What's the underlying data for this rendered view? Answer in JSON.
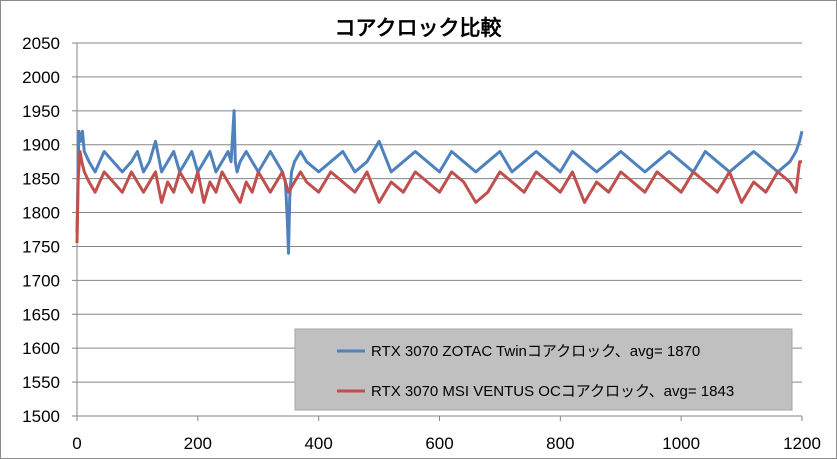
{
  "chart_data": {
    "type": "line",
    "title": "コアクロック比較",
    "xlabel": "",
    "ylabel": "",
    "xlim": [
      0,
      1200
    ],
    "ylim": [
      1500,
      2050
    ],
    "x_ticks": [
      0,
      200,
      400,
      600,
      800,
      1000,
      1200
    ],
    "y_ticks": [
      1500,
      1550,
      1600,
      1650,
      1700,
      1750,
      1800,
      1850,
      1900,
      1950,
      2000,
      2050
    ],
    "grid": "horizontal",
    "legend_position": "bottom-right",
    "legend_background": "#c0c0c0",
    "series": [
      {
        "name": "RTX 3070 ZOTAC Twinコアクロック、avg= 1870",
        "color": "#4f81bd",
        "x": [
          0,
          3,
          6,
          9,
          12,
          20,
          30,
          45,
          60,
          75,
          90,
          100,
          110,
          120,
          130,
          140,
          150,
          160,
          170,
          180,
          190,
          200,
          210,
          220,
          230,
          240,
          250,
          255,
          260,
          262,
          265,
          270,
          280,
          290,
          300,
          310,
          320,
          330,
          340,
          345,
          348,
          350,
          352,
          355,
          360,
          370,
          380,
          400,
          420,
          440,
          460,
          480,
          500,
          520,
          540,
          560,
          580,
          600,
          620,
          640,
          660,
          680,
          700,
          720,
          740,
          760,
          780,
          800,
          820,
          840,
          860,
          880,
          900,
          920,
          940,
          960,
          980,
          1000,
          1020,
          1040,
          1060,
          1080,
          1100,
          1120,
          1140,
          1160,
          1180,
          1190,
          1196,
          1200
        ],
        "y": [
          1770,
          1920,
          1905,
          1920,
          1890,
          1875,
          1860,
          1890,
          1875,
          1860,
          1875,
          1890,
          1860,
          1875,
          1905,
          1860,
          1875,
          1890,
          1860,
          1875,
          1890,
          1860,
          1875,
          1890,
          1860,
          1875,
          1890,
          1875,
          1950,
          1875,
          1860,
          1875,
          1890,
          1875,
          1860,
          1875,
          1890,
          1875,
          1860,
          1845,
          1790,
          1740,
          1820,
          1860,
          1875,
          1890,
          1875,
          1860,
          1875,
          1890,
          1860,
          1875,
          1905,
          1860,
          1875,
          1890,
          1875,
          1860,
          1890,
          1875,
          1860,
          1875,
          1890,
          1860,
          1875,
          1890,
          1875,
          1860,
          1890,
          1875,
          1860,
          1875,
          1890,
          1875,
          1860,
          1875,
          1890,
          1875,
          1860,
          1890,
          1875,
          1860,
          1875,
          1890,
          1875,
          1860,
          1875,
          1890,
          1905,
          1920
        ]
      },
      {
        "name": "RTX 3070 MSI VENTUS OCコアクロック、avg= 1843",
        "color": "#c0504d",
        "x": [
          0,
          2,
          5,
          8,
          12,
          20,
          30,
          45,
          60,
          75,
          90,
          100,
          110,
          120,
          130,
          140,
          150,
          160,
          170,
          180,
          190,
          200,
          210,
          220,
          230,
          240,
          250,
          260,
          270,
          280,
          290,
          300,
          310,
          320,
          330,
          340,
          350,
          360,
          370,
          380,
          400,
          420,
          440,
          460,
          480,
          500,
          520,
          540,
          560,
          580,
          600,
          620,
          640,
          660,
          680,
          700,
          720,
          740,
          760,
          780,
          800,
          820,
          840,
          860,
          880,
          900,
          920,
          940,
          960,
          980,
          1000,
          1020,
          1040,
          1060,
          1080,
          1100,
          1120,
          1140,
          1160,
          1180,
          1190,
          1196,
          1200
        ],
        "y": [
          1755,
          1850,
          1890,
          1875,
          1860,
          1845,
          1830,
          1860,
          1845,
          1830,
          1860,
          1845,
          1830,
          1845,
          1860,
          1815,
          1845,
          1830,
          1860,
          1845,
          1830,
          1860,
          1815,
          1845,
          1830,
          1860,
          1845,
          1830,
          1815,
          1845,
          1830,
          1860,
          1845,
          1830,
          1845,
          1860,
          1830,
          1845,
          1860,
          1845,
          1830,
          1860,
          1845,
          1830,
          1860,
          1815,
          1845,
          1830,
          1860,
          1845,
          1830,
          1860,
          1845,
          1815,
          1830,
          1860,
          1845,
          1830,
          1860,
          1845,
          1830,
          1860,
          1815,
          1845,
          1830,
          1860,
          1845,
          1830,
          1860,
          1845,
          1830,
          1860,
          1845,
          1830,
          1860,
          1815,
          1845,
          1830,
          1860,
          1845,
          1830,
          1875,
          1875
        ]
      }
    ]
  }
}
